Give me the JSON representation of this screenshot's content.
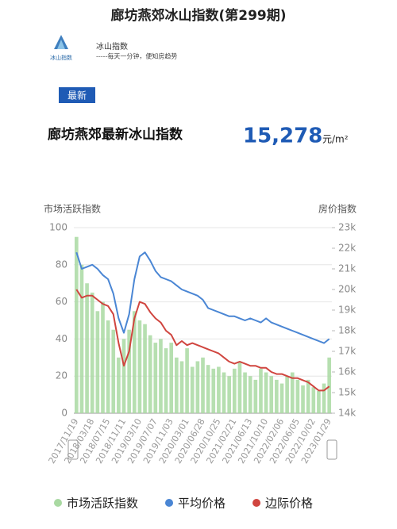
{
  "header": {
    "title": "廊坊燕郊冰山指数(第299期)"
  },
  "brand": {
    "logo_text": "冰山指数",
    "name": "冰山指数",
    "tagline": "-----每天一分钟，便知房趋势"
  },
  "badge": "最新",
  "headline": {
    "label": "廊坊燕郊最新冰山指数",
    "value": "15,278",
    "unit": "元/m²"
  },
  "chart_data": {
    "type": "combo",
    "y_label": "市场活跃指数",
    "y2_label": "房价指数",
    "categories": [
      "2017/11/19",
      null,
      null,
      "2018/03/18",
      null,
      null,
      "2018/07/15",
      null,
      null,
      "2018/11/11",
      null,
      null,
      "2019/03/10",
      null,
      null,
      "2019/07/07",
      null,
      null,
      "2019/11/03",
      null,
      null,
      "2020/03/01",
      null,
      null,
      "2020/06/28",
      null,
      null,
      "2020/10/25",
      null,
      null,
      "2021/02/21",
      null,
      null,
      "2021/06/13",
      null,
      null,
      "2021/10/10",
      null,
      null,
      "2022/02/06",
      null,
      null,
      "2022/06/05",
      null,
      null,
      "2022/10/02",
      null,
      null,
      "2023/01/29"
    ],
    "ylim": [
      0,
      100
    ],
    "yticks": [
      0,
      20,
      40,
      60,
      80,
      100
    ],
    "y2lim": [
      14000,
      23000
    ],
    "y2ticks": [
      {
        "value": 14000,
        "label": "14k"
      },
      {
        "value": 15000,
        "label": "15k"
      },
      {
        "value": 16000,
        "label": "16k"
      },
      {
        "value": 17000,
        "label": "17k"
      },
      {
        "value": 18000,
        "label": "18k"
      },
      {
        "value": 19000,
        "label": "19k"
      },
      {
        "value": 20000,
        "label": "20k"
      },
      {
        "value": 21000,
        "label": "21k"
      },
      {
        "value": 22000,
        "label": "22k"
      },
      {
        "value": 23000,
        "label": "23k"
      }
    ],
    "grid": true,
    "series": [
      {
        "name": "市场活跃指数",
        "type": "bar",
        "color": "#a9d9a2",
        "values": [
          95,
          80,
          70,
          65,
          55,
          60,
          50,
          45,
          30,
          40,
          45,
          55,
          50,
          48,
          42,
          38,
          40,
          35,
          38,
          30,
          28,
          35,
          25,
          28,
          30,
          26,
          24,
          25,
          22,
          20,
          24,
          28,
          22,
          20,
          18,
          24,
          22,
          20,
          18,
          16,
          20,
          22,
          18,
          15,
          18,
          14,
          12,
          16,
          30
        ]
      },
      {
        "name": "平均价格",
        "type": "line",
        "axis": "y2",
        "color": "#4a86d4",
        "values": [
          21800,
          21000,
          21100,
          21200,
          21000,
          20700,
          20500,
          19800,
          18600,
          17900,
          18800,
          20500,
          21600,
          21800,
          21400,
          20900,
          20600,
          20500,
          20400,
          20200,
          20000,
          19900,
          19800,
          19700,
          19500,
          19100,
          19000,
          18900,
          18800,
          18700,
          18700,
          18600,
          18500,
          18600,
          18500,
          18400,
          18600,
          18400,
          18300,
          18200,
          18100,
          18000,
          17900,
          17800,
          17700,
          17600,
          17500,
          17400,
          17600
        ]
      },
      {
        "name": "边际价格",
        "type": "line",
        "axis": "y2",
        "color": "#d0453f",
        "values": [
          20000,
          19600,
          19700,
          19700,
          19500,
          19300,
          19200,
          18800,
          17400,
          16300,
          17000,
          18600,
          19400,
          19300,
          18900,
          18600,
          18400,
          18000,
          17800,
          17300,
          17500,
          17300,
          17400,
          17300,
          17200,
          17100,
          17000,
          16900,
          16700,
          16500,
          16400,
          16500,
          16400,
          16300,
          16300,
          16200,
          16200,
          16000,
          15900,
          15900,
          15800,
          15700,
          15700,
          15600,
          15500,
          15300,
          15100,
          15100,
          15300
        ]
      }
    ]
  }
}
